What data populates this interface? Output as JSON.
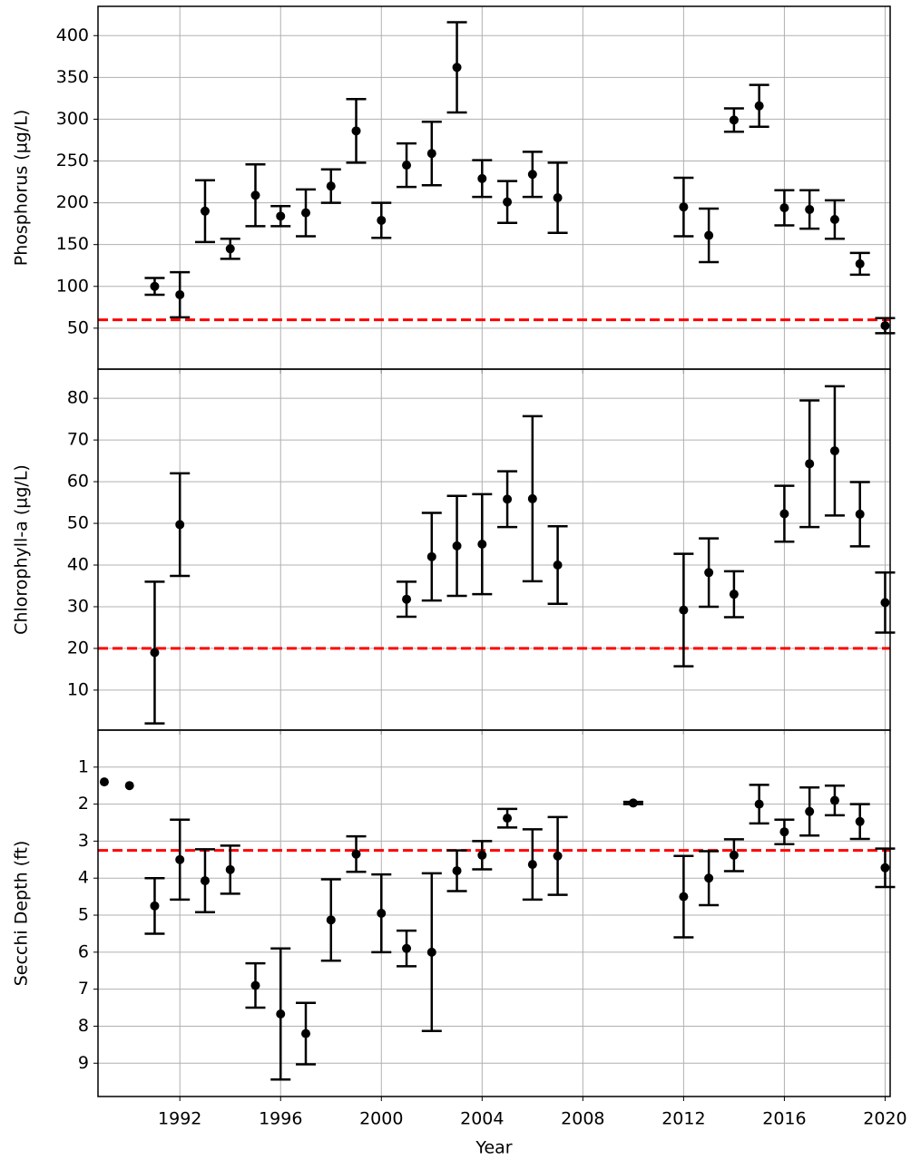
{
  "chart_data": [
    {
      "type": "errorbar",
      "ylabel": "Phosphorus (µg/L)",
      "x": [
        1991,
        1992,
        1993,
        1994,
        1995,
        1996,
        1997,
        1998,
        1999,
        2000,
        2001,
        2002,
        2003,
        2004,
        2005,
        2006,
        2007,
        2012,
        2013,
        2014,
        2015,
        2016,
        2017,
        2018,
        2019,
        2020
      ],
      "series": [
        {
          "color": "#000000",
          "values": [
            100,
            90,
            190,
            145,
            209,
            184,
            188,
            220,
            286,
            179,
            245,
            259,
            362,
            229,
            201,
            234,
            206,
            195,
            161,
            299,
            316,
            194,
            192,
            180,
            127,
            53
          ],
          "errors": [
            10,
            27,
            37,
            12,
            37,
            12,
            28,
            20,
            38,
            21,
            26,
            38,
            54,
            22,
            25,
            27,
            42,
            35,
            32,
            14,
            25,
            21,
            23,
            23,
            13,
            9
          ]
        }
      ],
      "threshold": 60,
      "threshold_color": "#ff0000",
      "xlim": [
        1988.75,
        2020.2
      ],
      "xticks": [
        1992,
        1996,
        2000,
        2004,
        2008,
        2012,
        2016,
        2020
      ],
      "ylim": [
        1,
        435
      ],
      "yticks": [
        50,
        100,
        150,
        200,
        250,
        300,
        350,
        400
      ],
      "grid": true
    },
    {
      "type": "errorbar",
      "ylabel": "Chlorophyll-a (µg/L)",
      "x": [
        1991,
        1992,
        2001,
        2002,
        2003,
        2004,
        2005,
        2006,
        2007,
        2012,
        2013,
        2014,
        2016,
        2017,
        2018,
        2019,
        2020
      ],
      "series": [
        {
          "color": "#000000",
          "values": [
            19,
            49.7,
            31.8,
            42,
            44.6,
            45,
            55.8,
            55.9,
            40,
            29.2,
            38.2,
            33,
            52.3,
            64.3,
            67.4,
            52.2,
            31
          ],
          "errors": [
            17,
            12.3,
            4.2,
            10.5,
            12,
            12,
            6.7,
            19.8,
            9.3,
            13.5,
            8.2,
            5.5,
            6.7,
            15.2,
            15.5,
            7.7,
            7.2
          ]
        }
      ],
      "threshold": 20,
      "threshold_color": "#ff0000",
      "xlim": [
        1988.75,
        2020.2
      ],
      "xticks": [
        1992,
        1996,
        2000,
        2004,
        2008,
        2012,
        2016,
        2020
      ],
      "ylim": [
        0.4,
        87
      ],
      "yticks": [
        10,
        20,
        30,
        40,
        50,
        60,
        70,
        80
      ],
      "grid": true
    },
    {
      "type": "errorbar",
      "ylabel": "Secchi Depth (ft)",
      "xlabel": "Year",
      "x": [
        1989,
        1990,
        1991,
        1992,
        1993,
        1994,
        1995,
        1996,
        1997,
        1998,
        1999,
        2000,
        2001,
        2002,
        2003,
        2004,
        2005,
        2006,
        2007,
        2010,
        2012,
        2013,
        2014,
        2015,
        2016,
        2017,
        2018,
        2019,
        2020
      ],
      "series": [
        {
          "color": "#000000",
          "values": [
            1.4,
            1.5,
            4.75,
            3.5,
            4.07,
            3.77,
            6.9,
            7.67,
            8.2,
            5.13,
            3.35,
            4.95,
            5.9,
            6.0,
            3.8,
            3.38,
            2.38,
            3.63,
            3.4,
            1.97,
            4.5,
            4.0,
            3.38,
            2.0,
            2.75,
            2.2,
            1.9,
            2.47,
            3.72
          ],
          "errors": [
            null,
            null,
            0.75,
            1.08,
            0.85,
            0.65,
            0.6,
            1.77,
            0.83,
            1.1,
            0.48,
            1.05,
            0.48,
            2.13,
            0.55,
            0.38,
            0.25,
            0.95,
            1.05,
            0.03,
            1.1,
            0.73,
            0.43,
            0.52,
            0.33,
            0.65,
            0.4,
            0.47,
            0.52
          ]
        }
      ],
      "threshold": 3.25,
      "threshold_color": "#ff0000",
      "xlim": [
        1988.75,
        2020.2
      ],
      "xticks": [
        1992,
        1996,
        2000,
        2004,
        2008,
        2012,
        2016,
        2020
      ],
      "ylim": [
        0,
        9.9
      ],
      "invert_y": true,
      "yticks": [
        1,
        2,
        3,
        4,
        5,
        6,
        7,
        8,
        9
      ],
      "grid": true
    }
  ]
}
